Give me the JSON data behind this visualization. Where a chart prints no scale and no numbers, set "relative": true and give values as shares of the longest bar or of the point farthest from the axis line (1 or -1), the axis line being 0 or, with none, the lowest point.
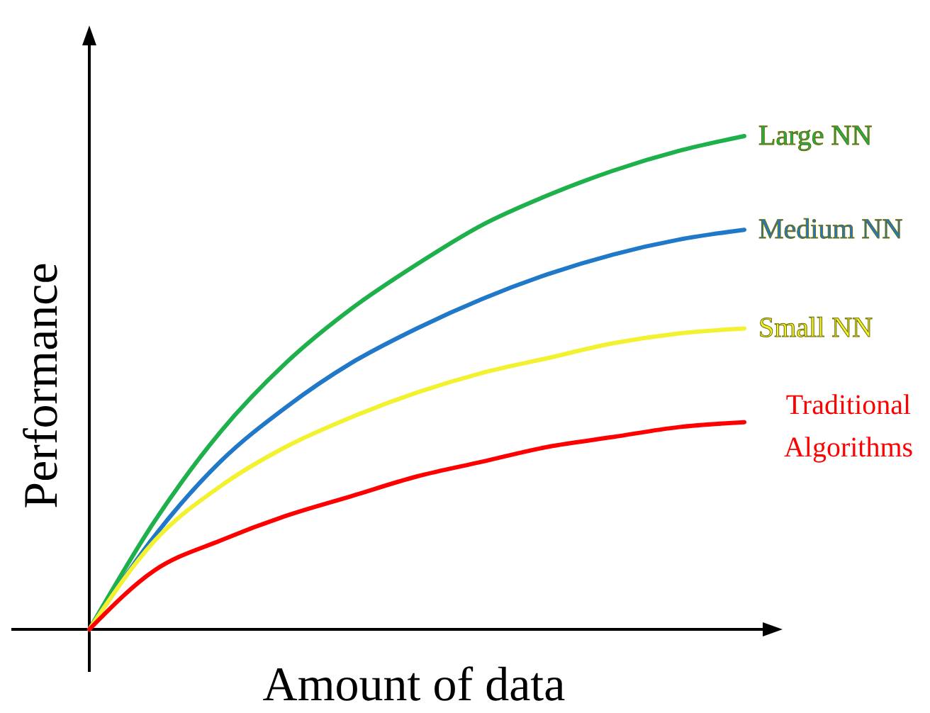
{
  "chart_data": {
    "type": "line",
    "xlabel": "Amount of data",
    "ylabel": "Performance",
    "relative": true,
    "categories": [
      null,
      null,
      null,
      null,
      null,
      null,
      null,
      null,
      null,
      null,
      null
    ],
    "series": [
      {
        "name": "Large NN",
        "color": "#1db04b",
        "values": [
          0,
          0.22,
          0.4,
          0.54,
          0.65,
          0.74,
          0.82,
          0.88,
          0.93,
          0.97,
          1.0
        ]
      },
      {
        "name": "Medium NN",
        "color": "#1f78c8",
        "values": [
          0,
          0.19,
          0.34,
          0.45,
          0.54,
          0.61,
          0.67,
          0.72,
          0.76,
          0.79,
          0.81
        ]
      },
      {
        "name": "Small NN",
        "color": "#f2f230",
        "values": [
          0,
          0.18,
          0.29,
          0.37,
          0.43,
          0.48,
          0.52,
          0.55,
          0.58,
          0.6,
          0.61
        ]
      },
      {
        "name": "Traditional Algorithms",
        "color": "#ff0000",
        "values": [
          0,
          0.12,
          0.18,
          0.23,
          0.27,
          0.31,
          0.34,
          0.37,
          0.39,
          0.41,
          0.42
        ]
      }
    ]
  }
}
